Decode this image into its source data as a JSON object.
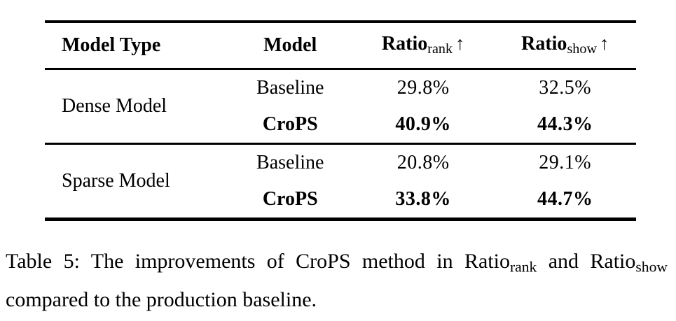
{
  "table": {
    "headers": {
      "model_type": "Model Type",
      "model": "Model",
      "ratio_rank": {
        "base": "Ratio",
        "sub": "rank",
        "arrow": "↑"
      },
      "ratio_show": {
        "base": "Ratio",
        "sub": "show",
        "arrow": "↑"
      }
    },
    "groups": [
      {
        "model_type": "Dense Model",
        "rows": [
          {
            "model": "Baseline",
            "ratio_rank": "29.8%",
            "ratio_show": "32.5%"
          },
          {
            "model": "CroPS",
            "ratio_rank": "40.9%",
            "ratio_show": "44.3%"
          }
        ]
      },
      {
        "model_type": "Sparse Model",
        "rows": [
          {
            "model": "Baseline",
            "ratio_rank": "20.8%",
            "ratio_show": "29.1%"
          },
          {
            "model": "CroPS",
            "ratio_rank": "33.8%",
            "ratio_show": "44.7%"
          }
        ]
      }
    ]
  },
  "caption": {
    "prefix": "Table 5: The improvements of CroPS method in Ratio",
    "sub1": "rank",
    "mid": " and Ratio",
    "sub2": "show",
    "suffix": " compared to the production baseline."
  },
  "chart_data": {
    "type": "table",
    "title": "Table 5: The improvements of CroPS method in Ratio_rank and Ratio_show compared to the production baseline.",
    "columns": [
      "Model Type",
      "Model",
      "Ratio_rank ↑",
      "Ratio_show ↑"
    ],
    "rows": [
      [
        "Dense Model",
        "Baseline",
        "29.8%",
        "32.5%"
      ],
      [
        "Dense Model",
        "CroPS",
        "40.9%",
        "44.3%"
      ],
      [
        "Sparse Model",
        "Baseline",
        "20.8%",
        "29.1%"
      ],
      [
        "Sparse Model",
        "CroPS",
        "33.8%",
        "44.7%"
      ]
    ]
  }
}
